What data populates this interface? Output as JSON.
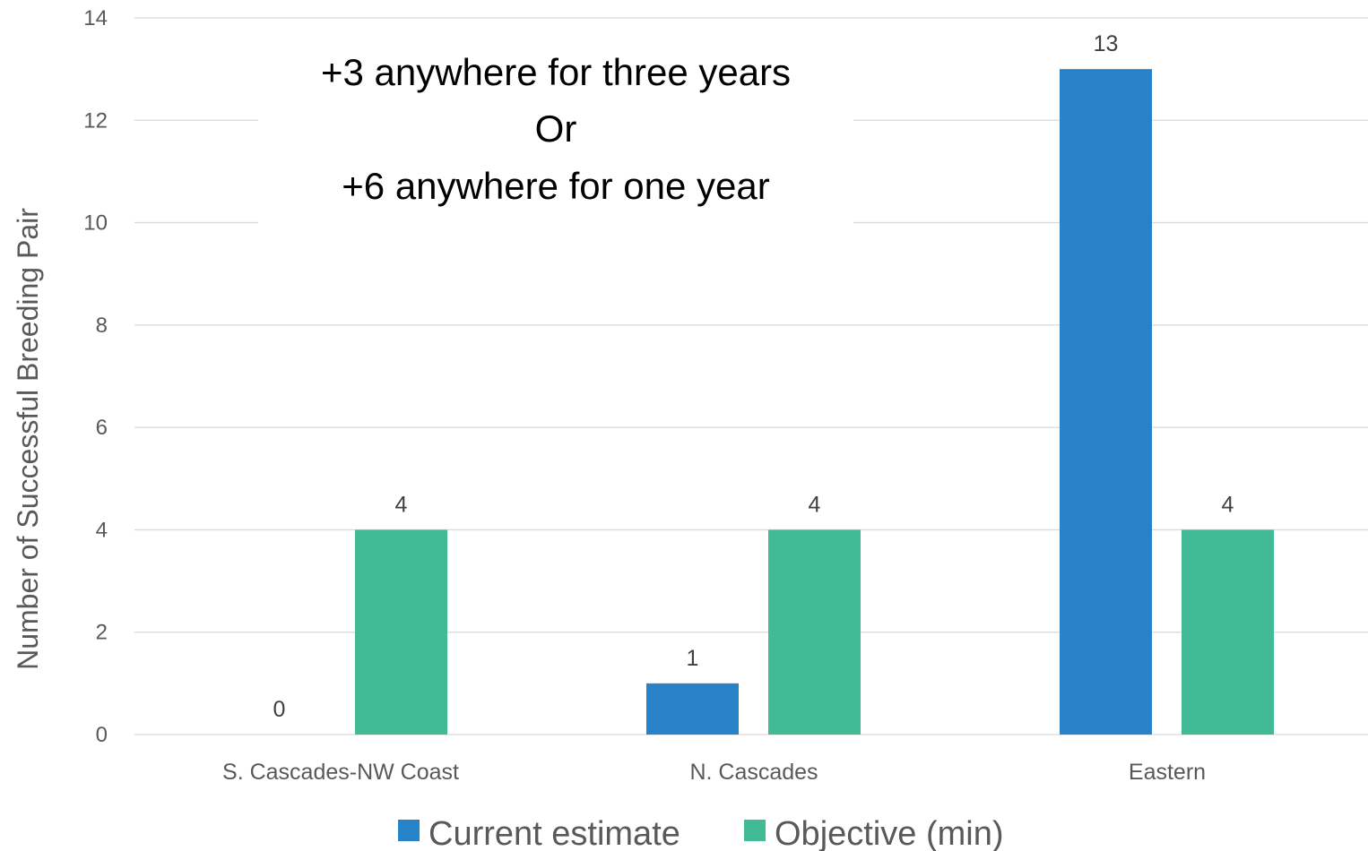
{
  "chart_data": {
    "type": "bar",
    "categories": [
      "S. Cascades-NW Coast",
      "N. Cascades",
      "Eastern"
    ],
    "series": [
      {
        "name": "Current estimate",
        "values": [
          0,
          1,
          13
        ],
        "color": "#2882C8"
      },
      {
        "name": "Objective (min)",
        "values": [
          4,
          4,
          4
        ],
        "color": "#41BA96"
      }
    ],
    "title": "",
    "xlabel": "",
    "ylabel": "Number of Successful Breeding Pair",
    "ylim": [
      0,
      14
    ],
    "yticks": [
      0,
      2,
      4,
      6,
      8,
      10,
      12,
      14
    ],
    "grid": true,
    "legend_position": "bottom",
    "annotation": [
      "+3 anywhere for three years",
      "Or",
      "+6 anywhere for one year"
    ]
  }
}
